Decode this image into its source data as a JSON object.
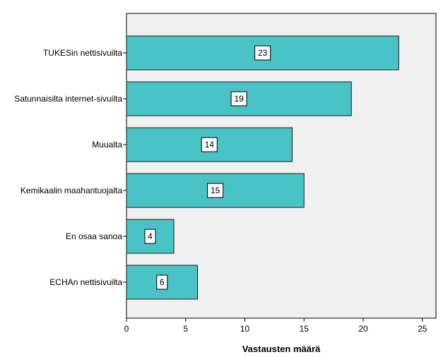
{
  "chart_data": {
    "type": "bar",
    "orientation": "horizontal",
    "categories": [
      "TUKESin nettisivuilta",
      "Satunnaisilta internet-sivuilta",
      "Muualta",
      "Kemikaalin maahantuojalta",
      "En osaa sanoa",
      "ECHAn nettisivuilta"
    ],
    "values": [
      23,
      19,
      14,
      15,
      4,
      6
    ],
    "data_labels": [
      "23",
      "19",
      "14",
      "15",
      "4",
      "6"
    ],
    "xlabel": "Vastausten määrä",
    "ylabel": "",
    "xlim": [
      0,
      25
    ],
    "x_ticks": [
      0,
      5,
      10,
      15,
      20,
      25
    ],
    "x_tick_labels": [
      "0",
      "5",
      "10",
      "15",
      "20",
      "25"
    ],
    "grid": false,
    "legend": "none",
    "colors": {
      "bar_fill": "#4AC3C6",
      "bar_stroke": "#1a1a1a",
      "plot_background": "#F0F0F0",
      "label_box_fill": "#ffffff"
    }
  }
}
